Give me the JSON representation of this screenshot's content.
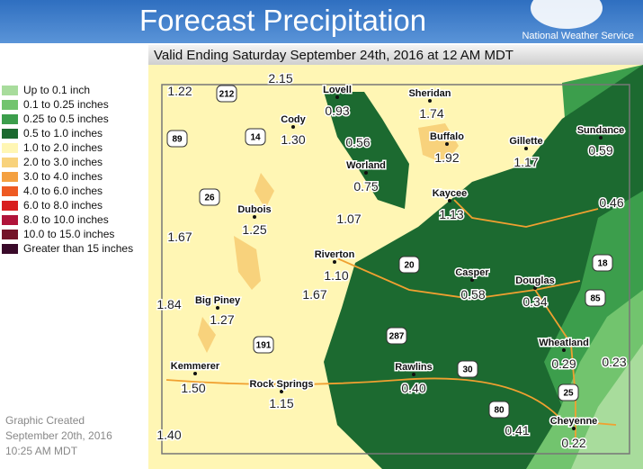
{
  "header": {
    "title": "Forecast Precipitation",
    "agency": "National Weather Service"
  },
  "subtitle": "Valid Ending Saturday September 24th, 2016 at 12 AM MDT",
  "legend": [
    {
      "label": "Up to 0.1 inch",
      "color": "#a8dc9c"
    },
    {
      "label": "0.1 to 0.25 inches",
      "color": "#72c46e"
    },
    {
      "label": "0.25 to 0.5 inches",
      "color": "#3c9e4c"
    },
    {
      "label": "0.5 to 1.0 inches",
      "color": "#1c6a30"
    },
    {
      "label": "1.0 to 2.0 inches",
      "color": "#fff6b4"
    },
    {
      "label": "2.0 to 3.0 inches",
      "color": "#f8d27c"
    },
    {
      "label": "3.0 to 4.0 inches",
      "color": "#f4a040"
    },
    {
      "label": "4.0 to 6.0 inches",
      "color": "#ee5a22"
    },
    {
      "label": "6.0 to 8.0 inches",
      "color": "#d81e1e"
    },
    {
      "label": "8.0 to 10.0 inches",
      "color": "#b0143a"
    },
    {
      "label": "10.0 to 15.0 inches",
      "color": "#741428"
    },
    {
      "label": "Greater than 15 inches",
      "color": "#3a0a2a"
    }
  ],
  "created": [
    "Graphic Created",
    "September 20th, 2016",
    "10:25 AM MDT"
  ],
  "cities": [
    {
      "value": "1.22"
    },
    {
      "value": "2.15"
    },
    {
      "name": "Lovell",
      "value": "0.93"
    },
    {
      "name": "Sheridan",
      "value": "1.74"
    },
    {
      "name": "Cody",
      "value": "1.30"
    },
    {
      "value": "0.56"
    },
    {
      "name": "Buffalo",
      "value": "1.92"
    },
    {
      "name": "Gillette",
      "value": "1.17"
    },
    {
      "name": "Sundance",
      "value": "0.59"
    },
    {
      "name": "Worland",
      "value": "0.75"
    },
    {
      "name": "Kaycee",
      "value": "1.13"
    },
    {
      "value": "0.46"
    },
    {
      "name": "Dubois",
      "value": "1.25"
    },
    {
      "value": "1.07"
    },
    {
      "value": "1.67"
    },
    {
      "name": "Riverton",
      "value": "1.10"
    },
    {
      "name": "Casper",
      "value": "0.58"
    },
    {
      "name": "Douglas",
      "value": "0.34"
    },
    {
      "value": "1.67"
    },
    {
      "value": "1.84"
    },
    {
      "name": "Big Piney",
      "value": "1.27"
    },
    {
      "name": "Wheatland",
      "value": "0.29"
    },
    {
      "value": "0.23"
    },
    {
      "name": "Kemmerer",
      "value": "1.50"
    },
    {
      "name": "Rawlins",
      "value": "0.40"
    },
    {
      "name": "Rock Springs",
      "value": "1.15"
    },
    {
      "name": "Cheyenne",
      "value": "0.22"
    },
    {
      "value": "0.41"
    },
    {
      "value": "1.40"
    }
  ],
  "shields": [
    "212",
    "89",
    "14",
    "26",
    "20",
    "18",
    "85",
    "287",
    "191",
    "30",
    "25",
    "80"
  ]
}
